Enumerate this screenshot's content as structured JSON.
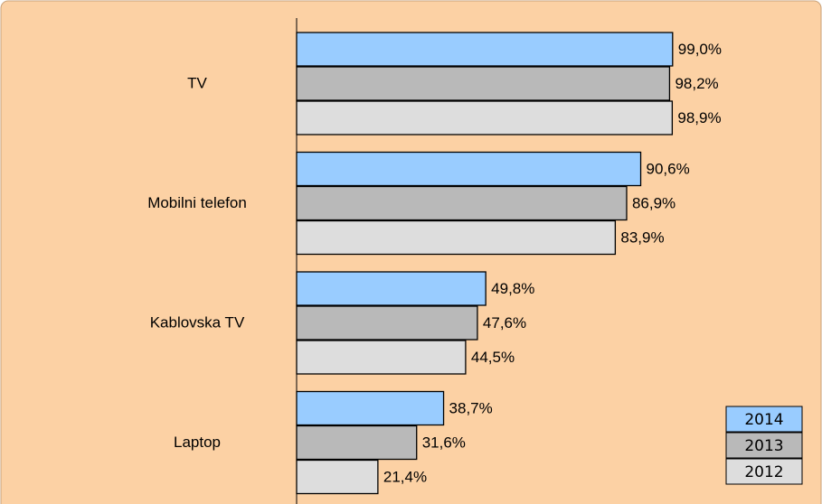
{
  "chart_data": {
    "type": "bar",
    "orientation": "horizontal",
    "categories": [
      "TV",
      "Mobilni telefon",
      "Kablovska TV",
      "Laptop"
    ],
    "series": [
      {
        "name": "2014",
        "color": "#99ccff",
        "values": [
          99.0,
          90.6,
          49.8,
          38.7
        ],
        "value_labels": [
          "99,0%",
          "90,6%",
          "49,8%",
          "38,7%"
        ]
      },
      {
        "name": "2013",
        "color": "#b9b9b9",
        "values": [
          98.2,
          86.9,
          47.6,
          31.6
        ],
        "value_labels": [
          "98,2%",
          "86,9%",
          "47,6%",
          "31,6%"
        ]
      },
      {
        "name": "2012",
        "color": "#dddddd",
        "values": [
          98.9,
          83.9,
          44.5,
          21.4
        ],
        "value_labels": [
          "98,9%",
          "83,9%",
          "44,5%",
          "21,4%"
        ]
      }
    ],
    "xlim": [
      0,
      100
    ],
    "legend": "bottom-right"
  }
}
